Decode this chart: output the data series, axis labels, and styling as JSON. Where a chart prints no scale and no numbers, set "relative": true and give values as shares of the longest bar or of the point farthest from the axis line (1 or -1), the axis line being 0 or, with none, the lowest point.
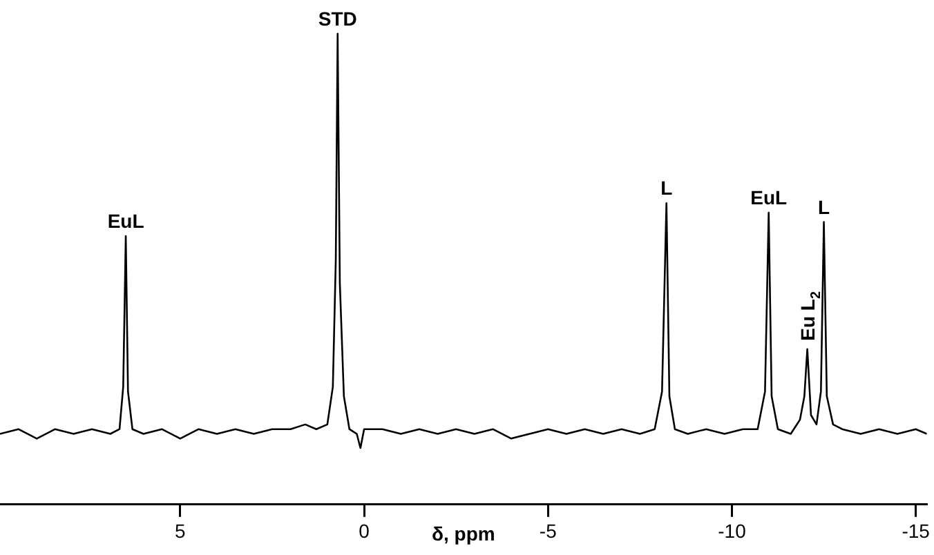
{
  "chart_data": {
    "type": "line",
    "relative": true,
    "xlabel": "δ, ppm",
    "xlim": [
      9.9,
      -15.3
    ],
    "xticks": [
      5,
      0,
      -5,
      -10,
      -15
    ],
    "grid": false,
    "legend": false,
    "marker": "none",
    "line_style": "solid",
    "tick_labels": "x",
    "x": [
      9.9,
      9.4,
      8.9,
      8.4,
      7.9,
      7.4,
      6.9,
      6.65,
      6.55,
      6.48,
      6.42,
      6.3,
      6.0,
      5.5,
      5.0,
      4.5,
      4.0,
      3.5,
      3.0,
      2.5,
      2.0,
      1.6,
      1.3,
      1.0,
      0.85,
      0.77,
      0.72,
      0.66,
      0.55,
      0.4,
      0.2,
      0.1,
      0.0,
      -0.5,
      -1,
      -1.5,
      -2,
      -2.5,
      -3,
      -3.5,
      -4,
      -4.5,
      -5,
      -5.5,
      -6,
      -6.5,
      -7,
      -7.5,
      -7.9,
      -8.1,
      -8.22,
      -8.3,
      -8.45,
      -8.8,
      -9.3,
      -9.8,
      -10.3,
      -10.7,
      -10.9,
      -11.0,
      -11.08,
      -11.25,
      -11.6,
      -11.85,
      -11.97,
      -12.05,
      -12.15,
      -12.3,
      -12.42,
      -12.5,
      -12.58,
      -12.75,
      -13.0,
      -13.5,
      -14,
      -14.5,
      -15,
      -15.3
    ],
    "series": [
      {
        "color": "#000000",
        "values": [
          0.15,
          0.16,
          0.14,
          0.16,
          0.15,
          0.16,
          0.15,
          0.16,
          0.25,
          0.57,
          0.24,
          0.16,
          0.15,
          0.16,
          0.14,
          0.16,
          0.15,
          0.16,
          0.15,
          0.16,
          0.16,
          0.17,
          0.16,
          0.17,
          0.25,
          0.52,
          1,
          0.47,
          0.23,
          0.16,
          0.15,
          0.12,
          0.16,
          0.16,
          0.15,
          0.16,
          0.15,
          0.16,
          0.15,
          0.16,
          0.14,
          0.15,
          0.16,
          0.15,
          0.16,
          0.15,
          0.16,
          0.15,
          0.16,
          0.24,
          0.64,
          0.23,
          0.16,
          0.15,
          0.16,
          0.15,
          0.16,
          0.16,
          0.24,
          0.62,
          0.23,
          0.16,
          0.15,
          0.18,
          0.23,
          0.33,
          0.19,
          0.17,
          0.24,
          0.6,
          0.23,
          0.17,
          0.16,
          0.15,
          0.16,
          0.15,
          0.16,
          0.15
        ]
      }
    ],
    "annotations": [
      {
        "text": "EuL",
        "x": 6.48,
        "y": 0.57
      },
      {
        "text": "STD",
        "x": 0.72,
        "y": 1
      },
      {
        "text": "L",
        "x": -8.22,
        "y": 0.64
      },
      {
        "text": "EuL",
        "x": -11.0,
        "y": 0.62
      },
      {
        "text": "Eu L$_{2}$",
        "x": -12.05,
        "y": 0.33
      },
      {
        "text": "L",
        "x": -12.5,
        "y": 0.6
      }
    ]
  }
}
